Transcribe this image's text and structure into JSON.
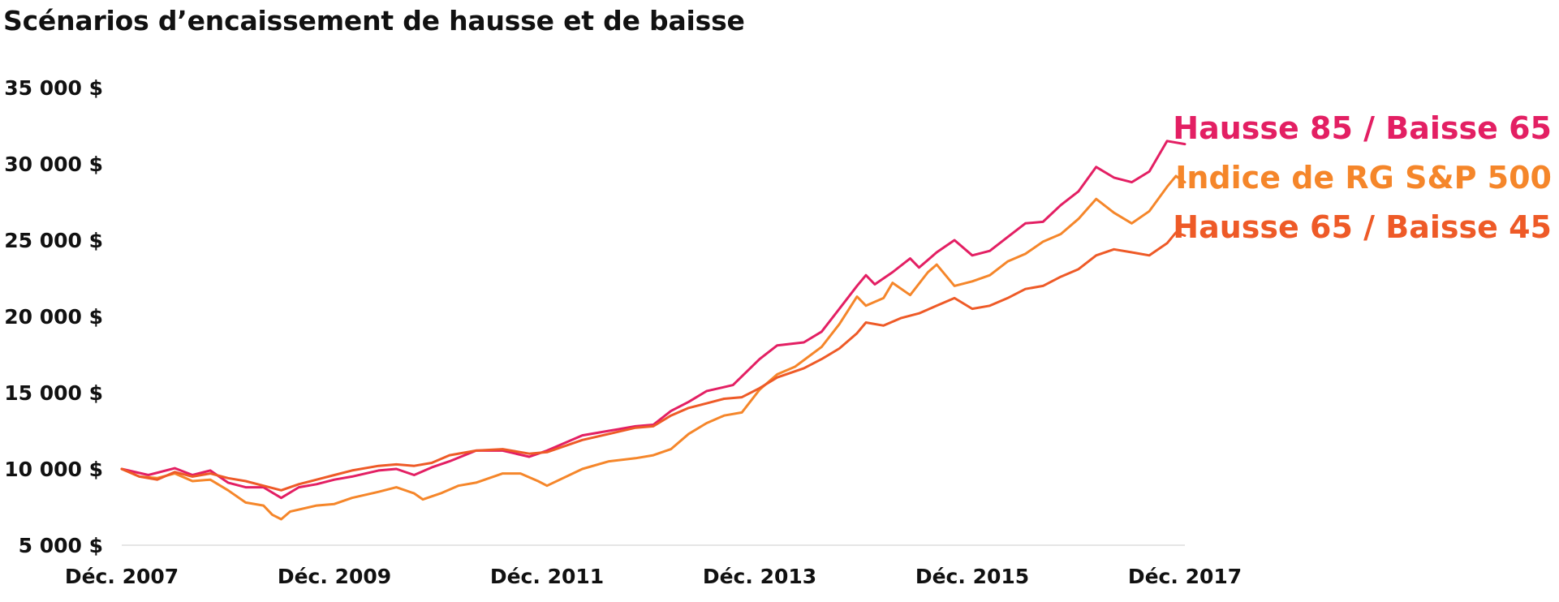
{
  "chart_data": {
    "type": "line",
    "title": "Scénarios d’encaissement de hausse et de baisse",
    "xlabel": "",
    "ylabel": "",
    "xlim": [
      2007.917,
      2017.917
    ],
    "ylim": [
      5000,
      35000
    ],
    "y_ticks": [
      5000,
      10000,
      15000,
      20000,
      25000,
      30000,
      35000
    ],
    "y_tick_labels": [
      "5 000 $",
      "10 000 $",
      "15 000 $",
      "20 000 $",
      "25 000 $",
      "30 000 $",
      "35 000 $"
    ],
    "x_ticks": [
      2007.917,
      2009.917,
      2011.917,
      2013.917,
      2015.917,
      2017.917
    ],
    "x_tick_labels": [
      "Déc. 2007",
      "Déc. 2009",
      "Déc. 2011",
      "Déc. 2013",
      "Déc. 2015",
      "Déc. 2017"
    ],
    "grid": false,
    "legend": "right end of lines",
    "series": [
      {
        "name": "Hausse 85 / Baisse 65",
        "color": "#e31f63",
        "points": [
          [
            2007.917,
            10000
          ],
          [
            2008.167,
            9600
          ],
          [
            2008.417,
            10050
          ],
          [
            2008.583,
            9600
          ],
          [
            2008.75,
            9900
          ],
          [
            2008.917,
            9100
          ],
          [
            2009.083,
            8800
          ],
          [
            2009.25,
            8800
          ],
          [
            2009.417,
            8100
          ],
          [
            2009.583,
            8800
          ],
          [
            2009.75,
            9000
          ],
          [
            2009.917,
            9300
          ],
          [
            2010.083,
            9500
          ],
          [
            2010.333,
            9900
          ],
          [
            2010.5,
            10000
          ],
          [
            2010.667,
            9600
          ],
          [
            2010.833,
            10100
          ],
          [
            2011.0,
            10500
          ],
          [
            2011.25,
            11200
          ],
          [
            2011.5,
            11200
          ],
          [
            2011.75,
            10800
          ],
          [
            2011.917,
            11200
          ],
          [
            2012.25,
            12200
          ],
          [
            2012.5,
            12500
          ],
          [
            2012.75,
            12800
          ],
          [
            2012.917,
            12900
          ],
          [
            2013.083,
            13800
          ],
          [
            2013.25,
            14400
          ],
          [
            2013.417,
            15100
          ],
          [
            2013.667,
            15500
          ],
          [
            2013.917,
            17200
          ],
          [
            2014.083,
            18100
          ],
          [
            2014.333,
            18300
          ],
          [
            2014.5,
            19000
          ],
          [
            2014.667,
            20500
          ],
          [
            2014.833,
            22000
          ],
          [
            2014.917,
            22700
          ],
          [
            2015.0,
            22100
          ],
          [
            2015.167,
            22900
          ],
          [
            2015.333,
            23800
          ],
          [
            2015.417,
            23200
          ],
          [
            2015.583,
            24200
          ],
          [
            2015.75,
            25000
          ],
          [
            2015.917,
            24000
          ],
          [
            2016.083,
            24300
          ],
          [
            2016.25,
            25200
          ],
          [
            2016.417,
            26100
          ],
          [
            2016.583,
            26200
          ],
          [
            2016.75,
            27300
          ],
          [
            2016.917,
            28200
          ],
          [
            2017.083,
            29800
          ],
          [
            2017.25,
            29100
          ],
          [
            2017.417,
            28800
          ],
          [
            2017.583,
            29500
          ],
          [
            2017.75,
            31500
          ],
          [
            2017.917,
            31300
          ]
        ]
      },
      {
        "name": "Indice de RG S&P 500",
        "color": "#f5862a",
        "points": [
          [
            2007.917,
            10000
          ],
          [
            2008.083,
            9500
          ],
          [
            2008.25,
            9400
          ],
          [
            2008.417,
            9700
          ],
          [
            2008.583,
            9200
          ],
          [
            2008.75,
            9300
          ],
          [
            2008.917,
            8600
          ],
          [
            2009.083,
            7800
          ],
          [
            2009.25,
            7600
          ],
          [
            2009.333,
            7000
          ],
          [
            2009.417,
            6700
          ],
          [
            2009.5,
            7200
          ],
          [
            2009.75,
            7600
          ],
          [
            2009.917,
            7700
          ],
          [
            2010.083,
            8100
          ],
          [
            2010.333,
            8500
          ],
          [
            2010.5,
            8800
          ],
          [
            2010.667,
            8400
          ],
          [
            2010.75,
            8000
          ],
          [
            2010.917,
            8400
          ],
          [
            2011.083,
            8900
          ],
          [
            2011.25,
            9100
          ],
          [
            2011.5,
            9700
          ],
          [
            2011.667,
            9700
          ],
          [
            2011.833,
            9200
          ],
          [
            2011.917,
            8900
          ],
          [
            2012.25,
            10000
          ],
          [
            2012.5,
            10500
          ],
          [
            2012.75,
            10700
          ],
          [
            2012.917,
            10900
          ],
          [
            2013.083,
            11300
          ],
          [
            2013.25,
            12300
          ],
          [
            2013.417,
            13000
          ],
          [
            2013.583,
            13500
          ],
          [
            2013.75,
            13700
          ],
          [
            2013.917,
            15200
          ],
          [
            2014.083,
            16200
          ],
          [
            2014.25,
            16700
          ],
          [
            2014.5,
            18000
          ],
          [
            2014.667,
            19500
          ],
          [
            2014.833,
            21300
          ],
          [
            2014.917,
            20700
          ],
          [
            2015.083,
            21200
          ],
          [
            2015.167,
            22200
          ],
          [
            2015.333,
            21400
          ],
          [
            2015.5,
            22900
          ],
          [
            2015.583,
            23400
          ],
          [
            2015.75,
            22000
          ],
          [
            2015.917,
            22300
          ],
          [
            2016.083,
            22700
          ],
          [
            2016.25,
            23600
          ],
          [
            2016.417,
            24100
          ],
          [
            2016.583,
            24900
          ],
          [
            2016.75,
            25400
          ],
          [
            2016.917,
            26400
          ],
          [
            2017.083,
            27700
          ],
          [
            2017.25,
            26800
          ],
          [
            2017.417,
            26100
          ],
          [
            2017.583,
            26900
          ],
          [
            2017.75,
            28500
          ],
          [
            2017.833,
            29200
          ],
          [
            2017.917,
            28800
          ]
        ]
      },
      {
        "name": "Hausse 65 / Baisse 45",
        "color": "#ee5a27",
        "points": [
          [
            2007.917,
            10000
          ],
          [
            2008.083,
            9500
          ],
          [
            2008.25,
            9300
          ],
          [
            2008.417,
            9800
          ],
          [
            2008.583,
            9500
          ],
          [
            2008.75,
            9700
          ],
          [
            2008.917,
            9400
          ],
          [
            2009.083,
            9200
          ],
          [
            2009.25,
            8900
          ],
          [
            2009.417,
            8600
          ],
          [
            2009.583,
            9000
          ],
          [
            2009.75,
            9300
          ],
          [
            2009.917,
            9600
          ],
          [
            2010.083,
            9900
          ],
          [
            2010.333,
            10200
          ],
          [
            2010.5,
            10300
          ],
          [
            2010.667,
            10200
          ],
          [
            2010.833,
            10400
          ],
          [
            2011.0,
            10900
          ],
          [
            2011.25,
            11200
          ],
          [
            2011.5,
            11300
          ],
          [
            2011.75,
            11000
          ],
          [
            2011.917,
            11100
          ],
          [
            2012.25,
            11900
          ],
          [
            2012.5,
            12300
          ],
          [
            2012.75,
            12700
          ],
          [
            2012.917,
            12800
          ],
          [
            2013.083,
            13500
          ],
          [
            2013.25,
            14000
          ],
          [
            2013.417,
            14300
          ],
          [
            2013.583,
            14600
          ],
          [
            2013.75,
            14700
          ],
          [
            2013.917,
            15300
          ],
          [
            2014.083,
            16000
          ],
          [
            2014.333,
            16600
          ],
          [
            2014.5,
            17200
          ],
          [
            2014.667,
            17900
          ],
          [
            2014.833,
            18900
          ],
          [
            2014.917,
            19600
          ],
          [
            2015.083,
            19400
          ],
          [
            2015.25,
            19900
          ],
          [
            2015.417,
            20200
          ],
          [
            2015.583,
            20700
          ],
          [
            2015.75,
            21200
          ],
          [
            2015.917,
            20500
          ],
          [
            2016.083,
            20700
          ],
          [
            2016.25,
            21200
          ],
          [
            2016.417,
            21800
          ],
          [
            2016.583,
            22000
          ],
          [
            2016.75,
            22600
          ],
          [
            2016.917,
            23100
          ],
          [
            2017.083,
            24000
          ],
          [
            2017.25,
            24400
          ],
          [
            2017.417,
            24200
          ],
          [
            2017.583,
            24000
          ],
          [
            2017.75,
            24800
          ],
          [
            2017.833,
            25500
          ],
          [
            2017.917,
            25300
          ]
        ]
      }
    ]
  }
}
